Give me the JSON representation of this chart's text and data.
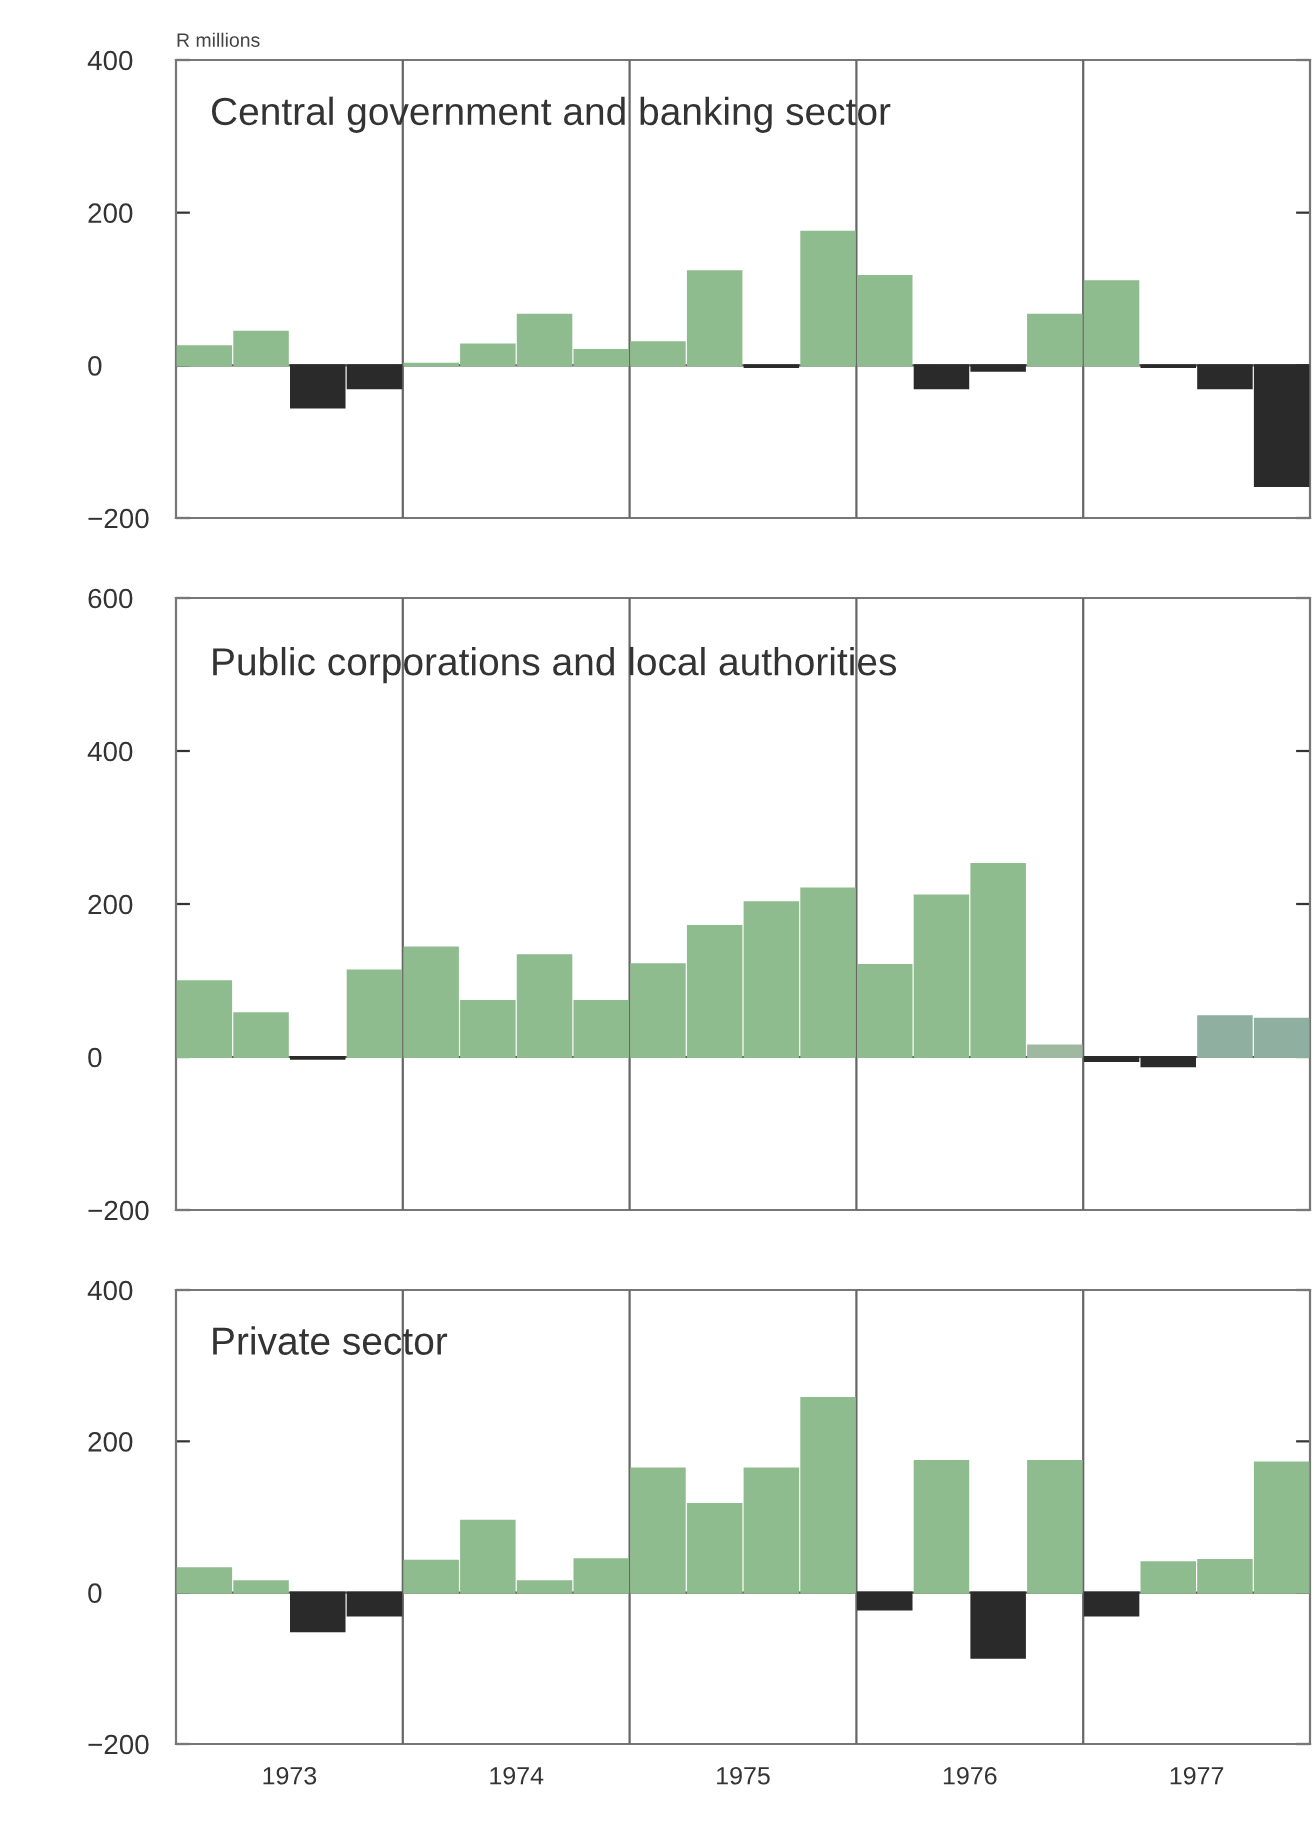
{
  "chart_data": [
    {
      "type": "bar",
      "title": "Central government and banking sector",
      "ylabel": "R millions",
      "x": [
        1973.125,
        1973.375,
        1973.625,
        1973.875,
        1974.125,
        1974.375,
        1974.625,
        1974.875,
        1975.125,
        1975.375,
        1975.625,
        1975.875,
        1976.125,
        1976.375,
        1976.625,
        1976.875,
        1977.125,
        1977.375,
        1977.625,
        1977.875
      ],
      "values": [
        25,
        44,
        -55,
        -30,
        2,
        27,
        66,
        20,
        30,
        123,
        -2,
        175,
        117,
        -30,
        -7,
        66,
        110,
        -2,
        -30,
        -158
      ],
      "colors": [
        "#8fbc8f",
        "#8fbc8f",
        "#2a2a2a",
        "#2a2a2a",
        "#8fbc8f",
        "#8fbc8f",
        "#8fbc8f",
        "#8fbc8f",
        "#8fbc8f",
        "#8fbc8f",
        "#2a2a2a",
        "#8fbc8f",
        "#8fbc8f",
        "#2a2a2a",
        "#2a2a2a",
        "#8fbc8f",
        "#8fbc8f",
        "#2a2a2a",
        "#2a2a2a",
        "#2a2a2a"
      ],
      "xlim": [
        1973,
        1978
      ],
      "ylim": [
        -200,
        400
      ],
      "yticks": [
        -200,
        0,
        200,
        400
      ],
      "ref_lines": [
        {
          "axis": "y",
          "value": 0,
          "label": null
        },
        {
          "axis": "x",
          "value": 1974,
          "label": null
        },
        {
          "axis": "x",
          "value": 1975,
          "label": null
        },
        {
          "axis": "x",
          "value": 1976,
          "label": null
        },
        {
          "axis": "x",
          "value": 1977,
          "label": null
        }
      ],
      "tick_labels": "y",
      "legend": false
    },
    {
      "type": "bar",
      "title": "Public corporations and local authorities",
      "x": [
        1973.125,
        1973.375,
        1973.625,
        1973.875,
        1974.125,
        1974.375,
        1974.625,
        1974.875,
        1975.125,
        1975.375,
        1975.625,
        1975.875,
        1976.125,
        1976.375,
        1976.625,
        1976.875,
        1977.125,
        1977.375,
        1977.625,
        1977.875
      ],
      "values": [
        99,
        57,
        -2,
        113,
        143,
        73,
        133,
        73,
        121,
        171,
        202,
        220,
        120,
        211,
        252,
        15,
        -5,
        -12,
        53,
        50
      ],
      "colors": [
        "#8fbc8f",
        "#8fbc8f",
        "#2a2a2a",
        "#8fbc8f",
        "#8fbc8f",
        "#8fbc8f",
        "#8fbc8f",
        "#8fbc8f",
        "#8fbc8f",
        "#8fbc8f",
        "#8fbc8f",
        "#8fbc8f",
        "#8fbc8f",
        "#8fbc8f",
        "#8fbc8f",
        "#9fb8a0",
        "#2a2a2a",
        "#2a2a2a",
        "#8fb0a0",
        "#8fb0a0"
      ],
      "xlim": [
        1973,
        1978
      ],
      "ylim": [
        -200,
        600
      ],
      "yticks": [
        -200,
        0,
        200,
        400,
        600
      ],
      "ref_lines": [
        {
          "axis": "y",
          "value": 0,
          "label": null
        },
        {
          "axis": "x",
          "value": 1974,
          "label": null
        },
        {
          "axis": "x",
          "value": 1975,
          "label": null
        },
        {
          "axis": "x",
          "value": 1976,
          "label": null
        },
        {
          "axis": "x",
          "value": 1977,
          "label": null
        }
      ],
      "tick_labels": "y",
      "legend": false
    },
    {
      "type": "bar",
      "title": "Private sector",
      "x": [
        1973.125,
        1973.375,
        1973.625,
        1973.875,
        1974.125,
        1974.375,
        1974.625,
        1974.875,
        1975.125,
        1975.375,
        1975.625,
        1975.875,
        1976.125,
        1976.375,
        1976.625,
        1976.875,
        1977.125,
        1977.375,
        1977.625,
        1977.875
      ],
      "values": [
        32,
        15,
        -51,
        -30,
        42,
        95,
        15,
        44,
        164,
        117,
        164,
        257,
        -22,
        174,
        -86,
        174,
        -30,
        40,
        43,
        172
      ],
      "colors": [
        "#8fbc8f",
        "#8fbc8f",
        "#2a2a2a",
        "#2a2a2a",
        "#8fbc8f",
        "#8fbc8f",
        "#8fbc8f",
        "#8fbc8f",
        "#8fbc8f",
        "#8fbc8f",
        "#8fbc8f",
        "#8fbc8f",
        "#2a2a2a",
        "#8fbc8f",
        "#2a2a2a",
        "#8fbc8f",
        "#2a2a2a",
        "#8fbc8f",
        "#8fbc8f",
        "#8fbc8f"
      ],
      "xlim": [
        1973,
        1978
      ],
      "ylim": [
        -200,
        400
      ],
      "yticks": [
        -200,
        0,
        200,
        400
      ],
      "xticks": [
        {
          "value": 1973.5,
          "label": "1973"
        },
        {
          "value": 1974.5,
          "label": "1974"
        },
        {
          "value": 1975.5,
          "label": "1975"
        },
        {
          "value": 1976.5,
          "label": "1976"
        },
        {
          "value": 1977.5,
          "label": "1977"
        }
      ],
      "ref_lines": [
        {
          "axis": "y",
          "value": 0,
          "label": null
        },
        {
          "axis": "x",
          "value": 1974,
          "label": null
        },
        {
          "axis": "x",
          "value": 1975,
          "label": null
        },
        {
          "axis": "x",
          "value": 1976,
          "label": null
        },
        {
          "axis": "x",
          "value": 1977,
          "label": null
        }
      ],
      "legend": false
    }
  ]
}
